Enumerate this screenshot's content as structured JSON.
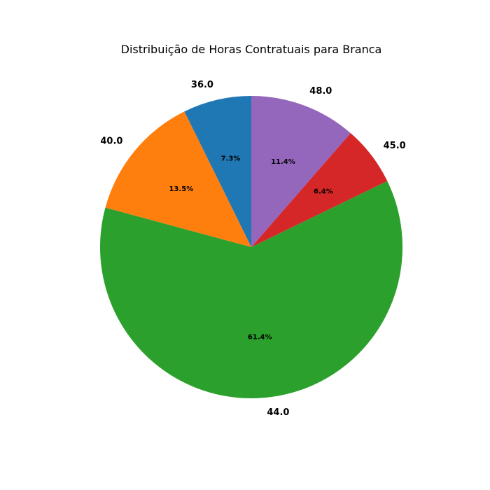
{
  "chart_data": {
    "type": "pie",
    "title": "Distribuição de Horas Contratuais para Branca",
    "categories": [
      "36.0",
      "40.0",
      "44.0",
      "45.0",
      "48.0"
    ],
    "values": [
      7.3,
      13.5,
      61.4,
      6.4,
      11.4
    ],
    "percent_labels": [
      "7.3%",
      "13.5%",
      "61.4%",
      "6.4%",
      "11.4%"
    ],
    "colors": [
      "#1f77b4",
      "#ff7f0e",
      "#2ca02c",
      "#d62728",
      "#9467bd"
    ],
    "start_angle_deg": 90,
    "direction": "counterclockwise",
    "legend": "none"
  }
}
